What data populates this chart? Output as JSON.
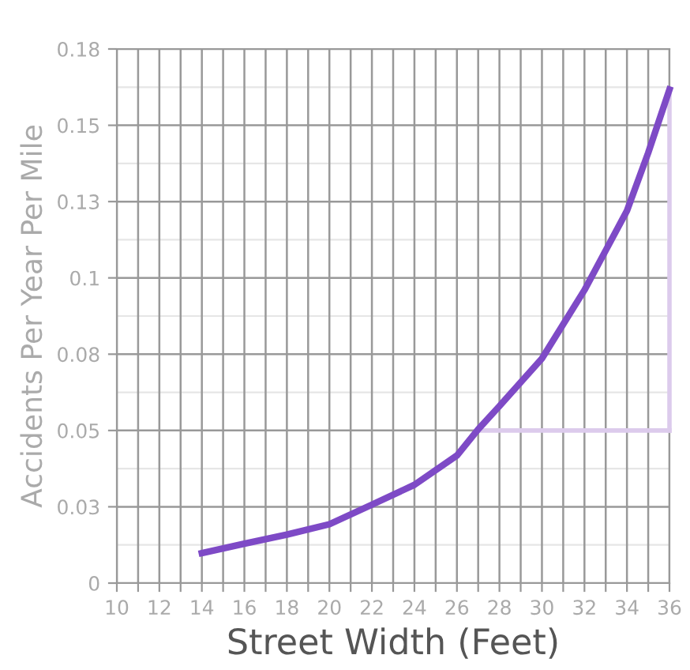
{
  "chart_data": {
    "type": "line",
    "xlabel": "Street Width (Feet)",
    "ylabel": "Accidents Per Year Per Mile",
    "series": [
      {
        "color": "#7e4ac6",
        "x": [
          14,
          16,
          18,
          20,
          22,
          24,
          26,
          27,
          28,
          30,
          32,
          34,
          35,
          36
        ],
        "values": [
          0.0098,
          0.0129,
          0.0159,
          0.0193,
          0.0257,
          0.0322,
          0.0418,
          0.0504,
          0.058,
          0.0736,
          0.096,
          0.122,
          0.141,
          0.1617
        ]
      },
      {
        "color": "#dccbec",
        "x": [
          27,
          36
        ],
        "values": [
          0.05,
          0.05
        ]
      },
      {
        "color": "#dccbec",
        "x": [
          36,
          36
        ],
        "values": [
          0.05,
          0.1617
        ]
      }
    ],
    "xlim": [
      10,
      36
    ],
    "xticks": [
      10,
      {
        "value": 11,
        "label": null
      },
      12,
      {
        "value": 13,
        "label": null
      },
      14,
      {
        "value": 15,
        "label": null
      },
      16,
      {
        "value": 17,
        "label": null
      },
      18,
      {
        "value": 19,
        "label": null
      },
      20,
      {
        "value": 21,
        "label": null
      },
      22,
      {
        "value": 23,
        "label": null
      },
      24,
      {
        "value": 25,
        "label": null
      },
      26,
      {
        "value": 27,
        "label": null
      },
      28,
      {
        "value": 29,
        "label": null
      },
      30,
      {
        "value": 31,
        "label": null
      },
      32,
      {
        "value": 33,
        "label": null
      },
      34,
      {
        "value": 35,
        "label": null
      },
      36
    ],
    "ylim": [
      0,
      0.175
    ],
    "yticks": [
      0,
      {
        "value": 0.025,
        "label": "0.03"
      },
      0.05,
      {
        "value": 0.075,
        "label": "0.08"
      },
      {
        "value": 0.1,
        "label": "0.1"
      },
      {
        "value": 0.125,
        "label": "0.13"
      },
      0.15,
      {
        "value": 0.175,
        "label": "0.18"
      }
    ],
    "grid": true,
    "marker": "none",
    "line_style": "solid"
  }
}
